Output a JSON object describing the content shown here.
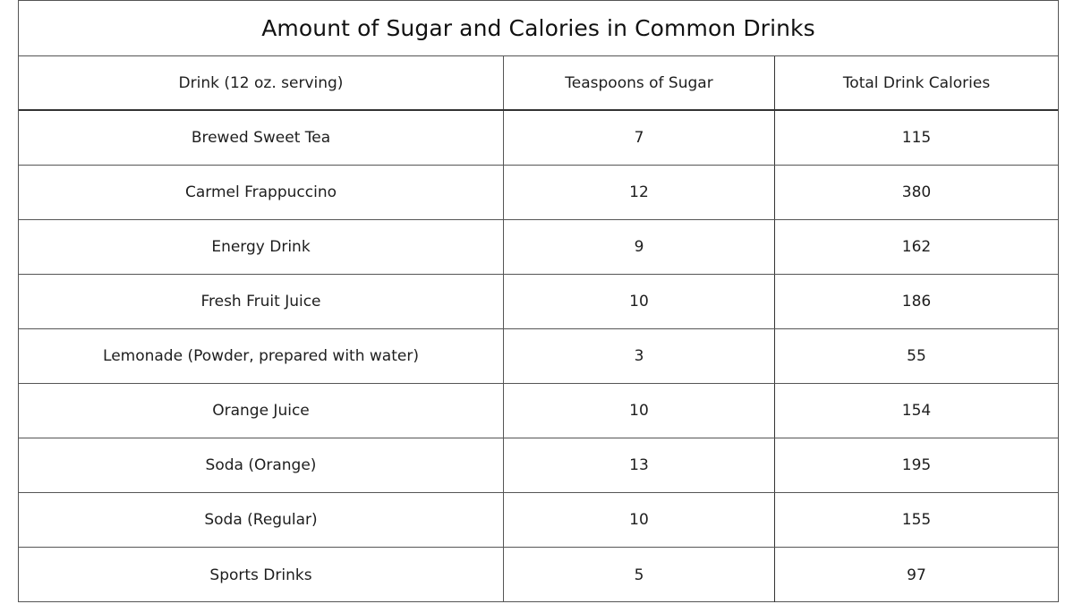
{
  "title": "Amount of Sugar and Calories in Common Drinks",
  "columns": [
    "Drink (12 oz. serving)",
    "Teaspoons of Sugar",
    "Total Drink Calories"
  ],
  "rows": [
    {
      "drink": "Brewed Sweet Tea",
      "sugar": "7",
      "calories": "115"
    },
    {
      "drink": "Carmel Frappuccino",
      "sugar": "12",
      "calories": "380"
    },
    {
      "drink": "Energy Drink",
      "sugar": "9",
      "calories": "162"
    },
    {
      "drink": "Fresh Fruit Juice",
      "sugar": "10",
      "calories": "186"
    },
    {
      "drink": "Lemonade (Powder, prepared with water)",
      "sugar": "3",
      "calories": "55"
    },
    {
      "drink": "Orange Juice",
      "sugar": "10",
      "calories": "154"
    },
    {
      "drink": "Soda (Orange)",
      "sugar": "13",
      "calories": "195"
    },
    {
      "drink": "Soda (Regular)",
      "sugar": "10",
      "calories": "155"
    },
    {
      "drink": "Sports Drinks",
      "sugar": "5",
      "calories": "97"
    }
  ]
}
